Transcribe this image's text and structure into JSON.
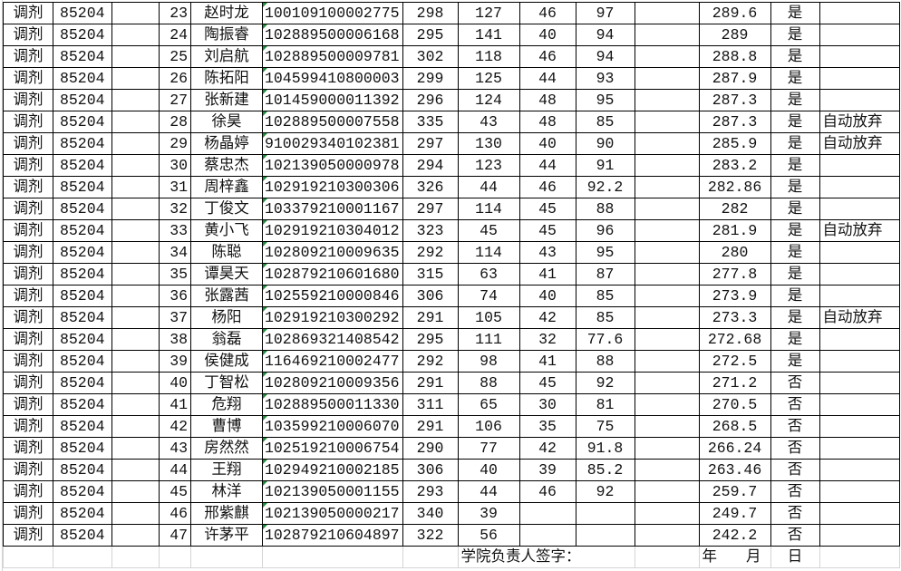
{
  "rows": [
    [
      "调剂",
      "85204",
      "23",
      "赵时龙",
      "100109100002775",
      "298",
      "127",
      "46",
      "97",
      "",
      "289.6",
      "是",
      ""
    ],
    [
      "调剂",
      "85204",
      "24",
      "陶振睿",
      "102889500006168",
      "295",
      "141",
      "40",
      "94",
      "",
      "289",
      "是",
      ""
    ],
    [
      "调剂",
      "85204",
      "25",
      "刘启航",
      "102889500009781",
      "302",
      "118",
      "46",
      "94",
      "",
      "288.8",
      "是",
      ""
    ],
    [
      "调剂",
      "85204",
      "26",
      "陈拓阳",
      "104599410800003",
      "299",
      "125",
      "44",
      "93",
      "",
      "287.9",
      "是",
      ""
    ],
    [
      "调剂",
      "85204",
      "27",
      "张新建",
      "101459000011392",
      "296",
      "124",
      "48",
      "95",
      "",
      "287.3",
      "是",
      ""
    ],
    [
      "调剂",
      "85204",
      "28",
      "徐昊",
      "102889500007558",
      "335",
      "43",
      "48",
      "85",
      "",
      "287.3",
      "是",
      "自动放弃"
    ],
    [
      "调剂",
      "85204",
      "29",
      "杨晶婷",
      "910029340102381",
      "297",
      "130",
      "40",
      "90",
      "",
      "285.9",
      "是",
      "自动放弃"
    ],
    [
      "调剂",
      "85204",
      "30",
      "蔡忠杰",
      "102139050000978",
      "294",
      "123",
      "44",
      "91",
      "",
      "283.2",
      "是",
      ""
    ],
    [
      "调剂",
      "85204",
      "31",
      "周梓鑫",
      "102919210300306",
      "326",
      "44",
      "46",
      "92.2",
      "",
      "282.86",
      "是",
      ""
    ],
    [
      "调剂",
      "85204",
      "32",
      "丁俊文",
      "103379210001167",
      "297",
      "114",
      "45",
      "88",
      "",
      "282",
      "是",
      ""
    ],
    [
      "调剂",
      "85204",
      "33",
      "黄小飞",
      "102919210304012",
      "323",
      "45",
      "45",
      "96",
      "",
      "281.9",
      "是",
      "自动放弃"
    ],
    [
      "调剂",
      "85204",
      "34",
      "陈聪",
      "102809210009635",
      "292",
      "114",
      "43",
      "95",
      "",
      "280",
      "是",
      ""
    ],
    [
      "调剂",
      "85204",
      "35",
      "谭昊天",
      "102879210601680",
      "315",
      "63",
      "41",
      "87",
      "",
      "277.8",
      "是",
      ""
    ],
    [
      "调剂",
      "85204",
      "36",
      "张露茜",
      "102559210000846",
      "306",
      "74",
      "40",
      "85",
      "",
      "273.9",
      "是",
      ""
    ],
    [
      "调剂",
      "85204",
      "37",
      "杨阳",
      "102919210300292",
      "291",
      "105",
      "42",
      "85",
      "",
      "273.3",
      "是",
      "自动放弃"
    ],
    [
      "调剂",
      "85204",
      "38",
      "翁磊",
      "102869321408542",
      "295",
      "111",
      "32",
      "77.6",
      "",
      "272.68",
      "是",
      ""
    ],
    [
      "调剂",
      "85204",
      "39",
      "侯健成",
      "116469210002477",
      "292",
      "98",
      "41",
      "88",
      "",
      "272.5",
      "是",
      ""
    ],
    [
      "调剂",
      "85204",
      "40",
      "丁智松",
      "102809210009356",
      "291",
      "88",
      "45",
      "92",
      "",
      "271.2",
      "否",
      ""
    ],
    [
      "调剂",
      "85204",
      "41",
      "危翔",
      "102889500011330",
      "311",
      "65",
      "30",
      "81",
      "",
      "270.5",
      "否",
      ""
    ],
    [
      "调剂",
      "85204",
      "42",
      "曹博",
      "103599210006070",
      "291",
      "106",
      "35",
      "75",
      "",
      "268.5",
      "否",
      ""
    ],
    [
      "调剂",
      "85204",
      "43",
      "房然然",
      "102519210006754",
      "290",
      "77",
      "42",
      "91.8",
      "",
      "266.24",
      "否",
      ""
    ],
    [
      "调剂",
      "85204",
      "44",
      "王翔",
      "102949210002185",
      "306",
      "40",
      "39",
      "85.2",
      "",
      "263.46",
      "否",
      ""
    ],
    [
      "调剂",
      "85204",
      "45",
      "林洋",
      "102139050001155",
      "293",
      "44",
      "46",
      "92",
      "",
      "259.7",
      "否",
      ""
    ],
    [
      "调剂",
      "85204",
      "46",
      "邢紫麒",
      "102139050000217",
      "340",
      "39",
      "",
      "",
      "",
      "249.7",
      "否",
      ""
    ],
    [
      "调剂",
      "85204",
      "47",
      "许茅平",
      "102879210604897",
      "322",
      "56",
      "",
      "",
      "",
      "242.2",
      "否",
      ""
    ]
  ],
  "footer": {
    "signature_label": "学院负责人签字：",
    "year": "年",
    "month": "月",
    "day": "日"
  },
  "colors": {
    "grid": "#000000",
    "faint_grid": "#d4d4d4",
    "number_stored_as_text_marker": "#1e8c3a"
  }
}
